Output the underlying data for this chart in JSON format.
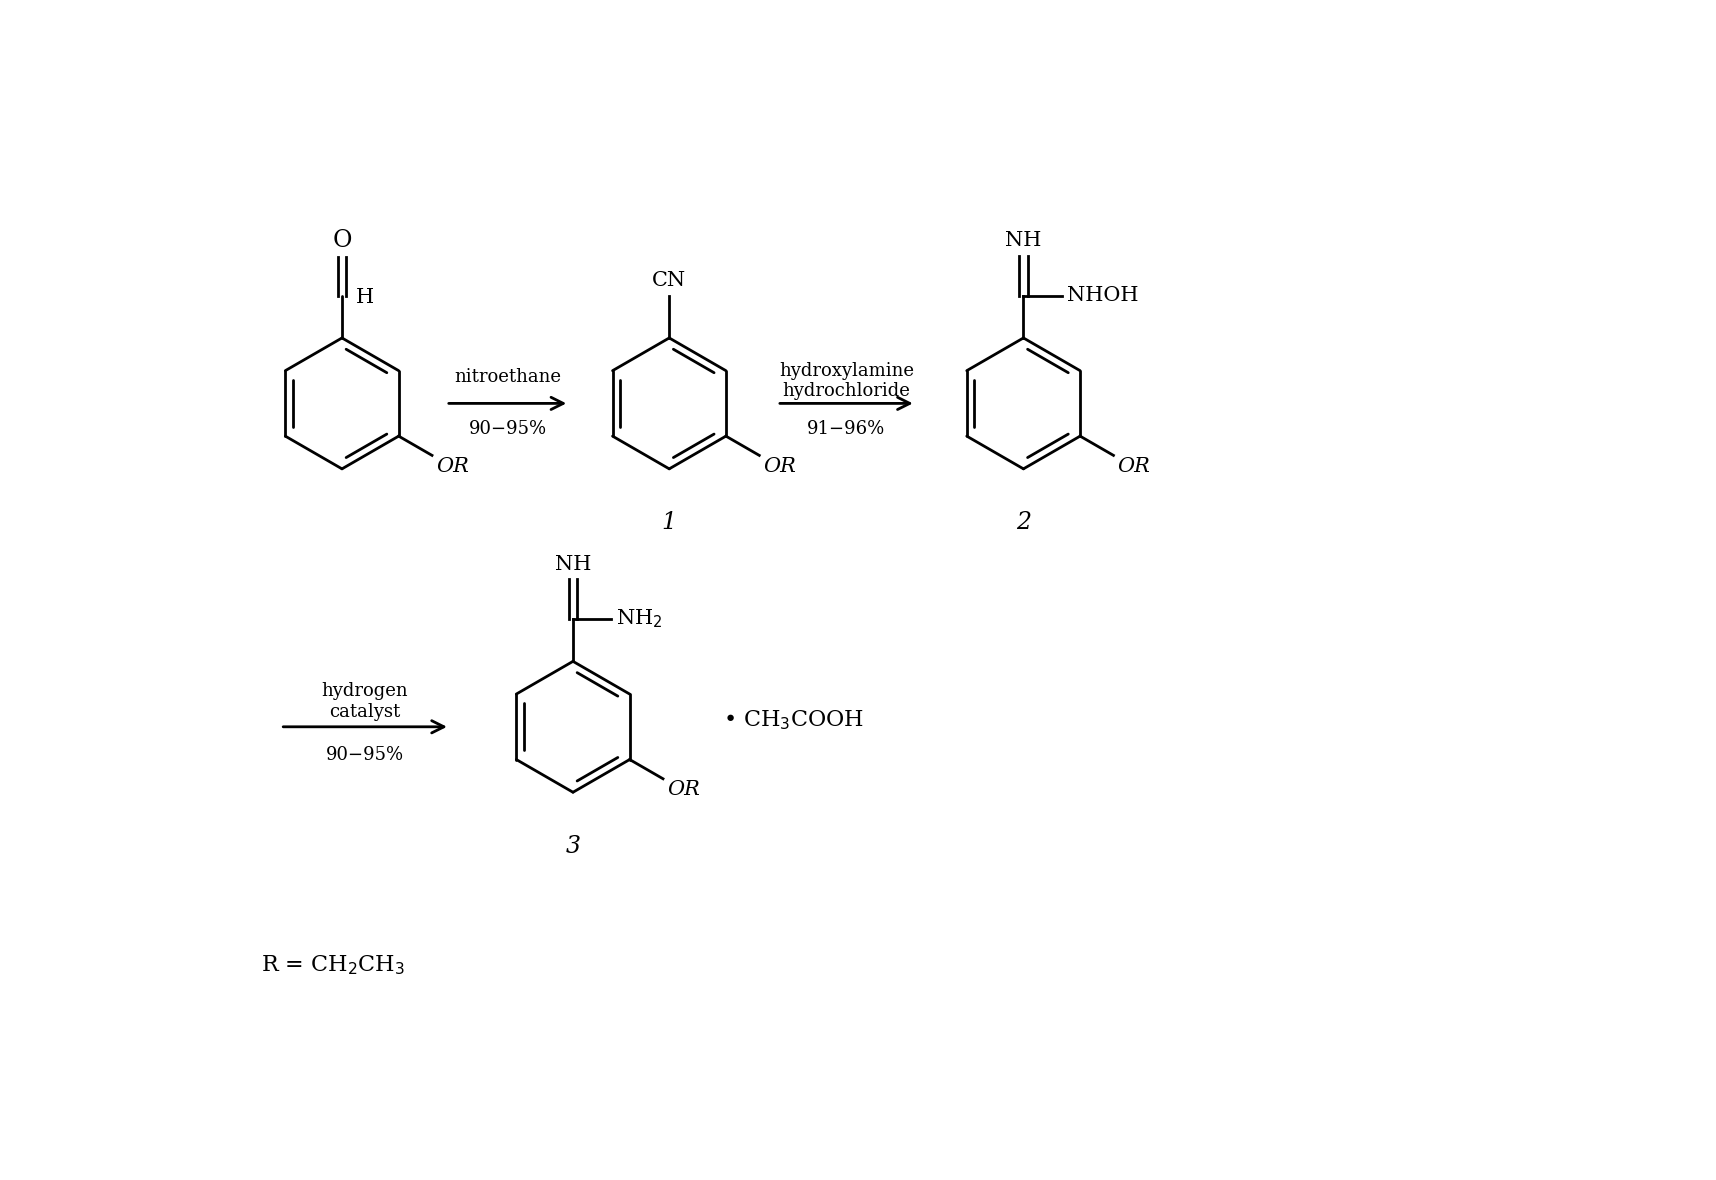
{
  "background_color": "#ffffff",
  "fig_width": 17.16,
  "fig_height": 11.8,
  "dpi": 100,
  "arrow1_label_top": "nitroethane",
  "arrow1_label_bot": "90−95%",
  "arrow2_label_top1": "hydroxylamine",
  "arrow2_label_top2": "hydrochloride",
  "arrow2_label_bot": "91−96%",
  "arrow3_label_top1": "hydrogen",
  "arrow3_label_top2": "catalyst",
  "arrow3_label_bot": "90−95%",
  "compound1_label": "1",
  "compound2_label": "2",
  "compound3_label": "3",
  "R_label": "R = CH",
  "bond_lw": 2.0,
  "ring_r": 0.85,
  "fs_label": 15,
  "fs_arrow": 13,
  "fs_compound": 17
}
